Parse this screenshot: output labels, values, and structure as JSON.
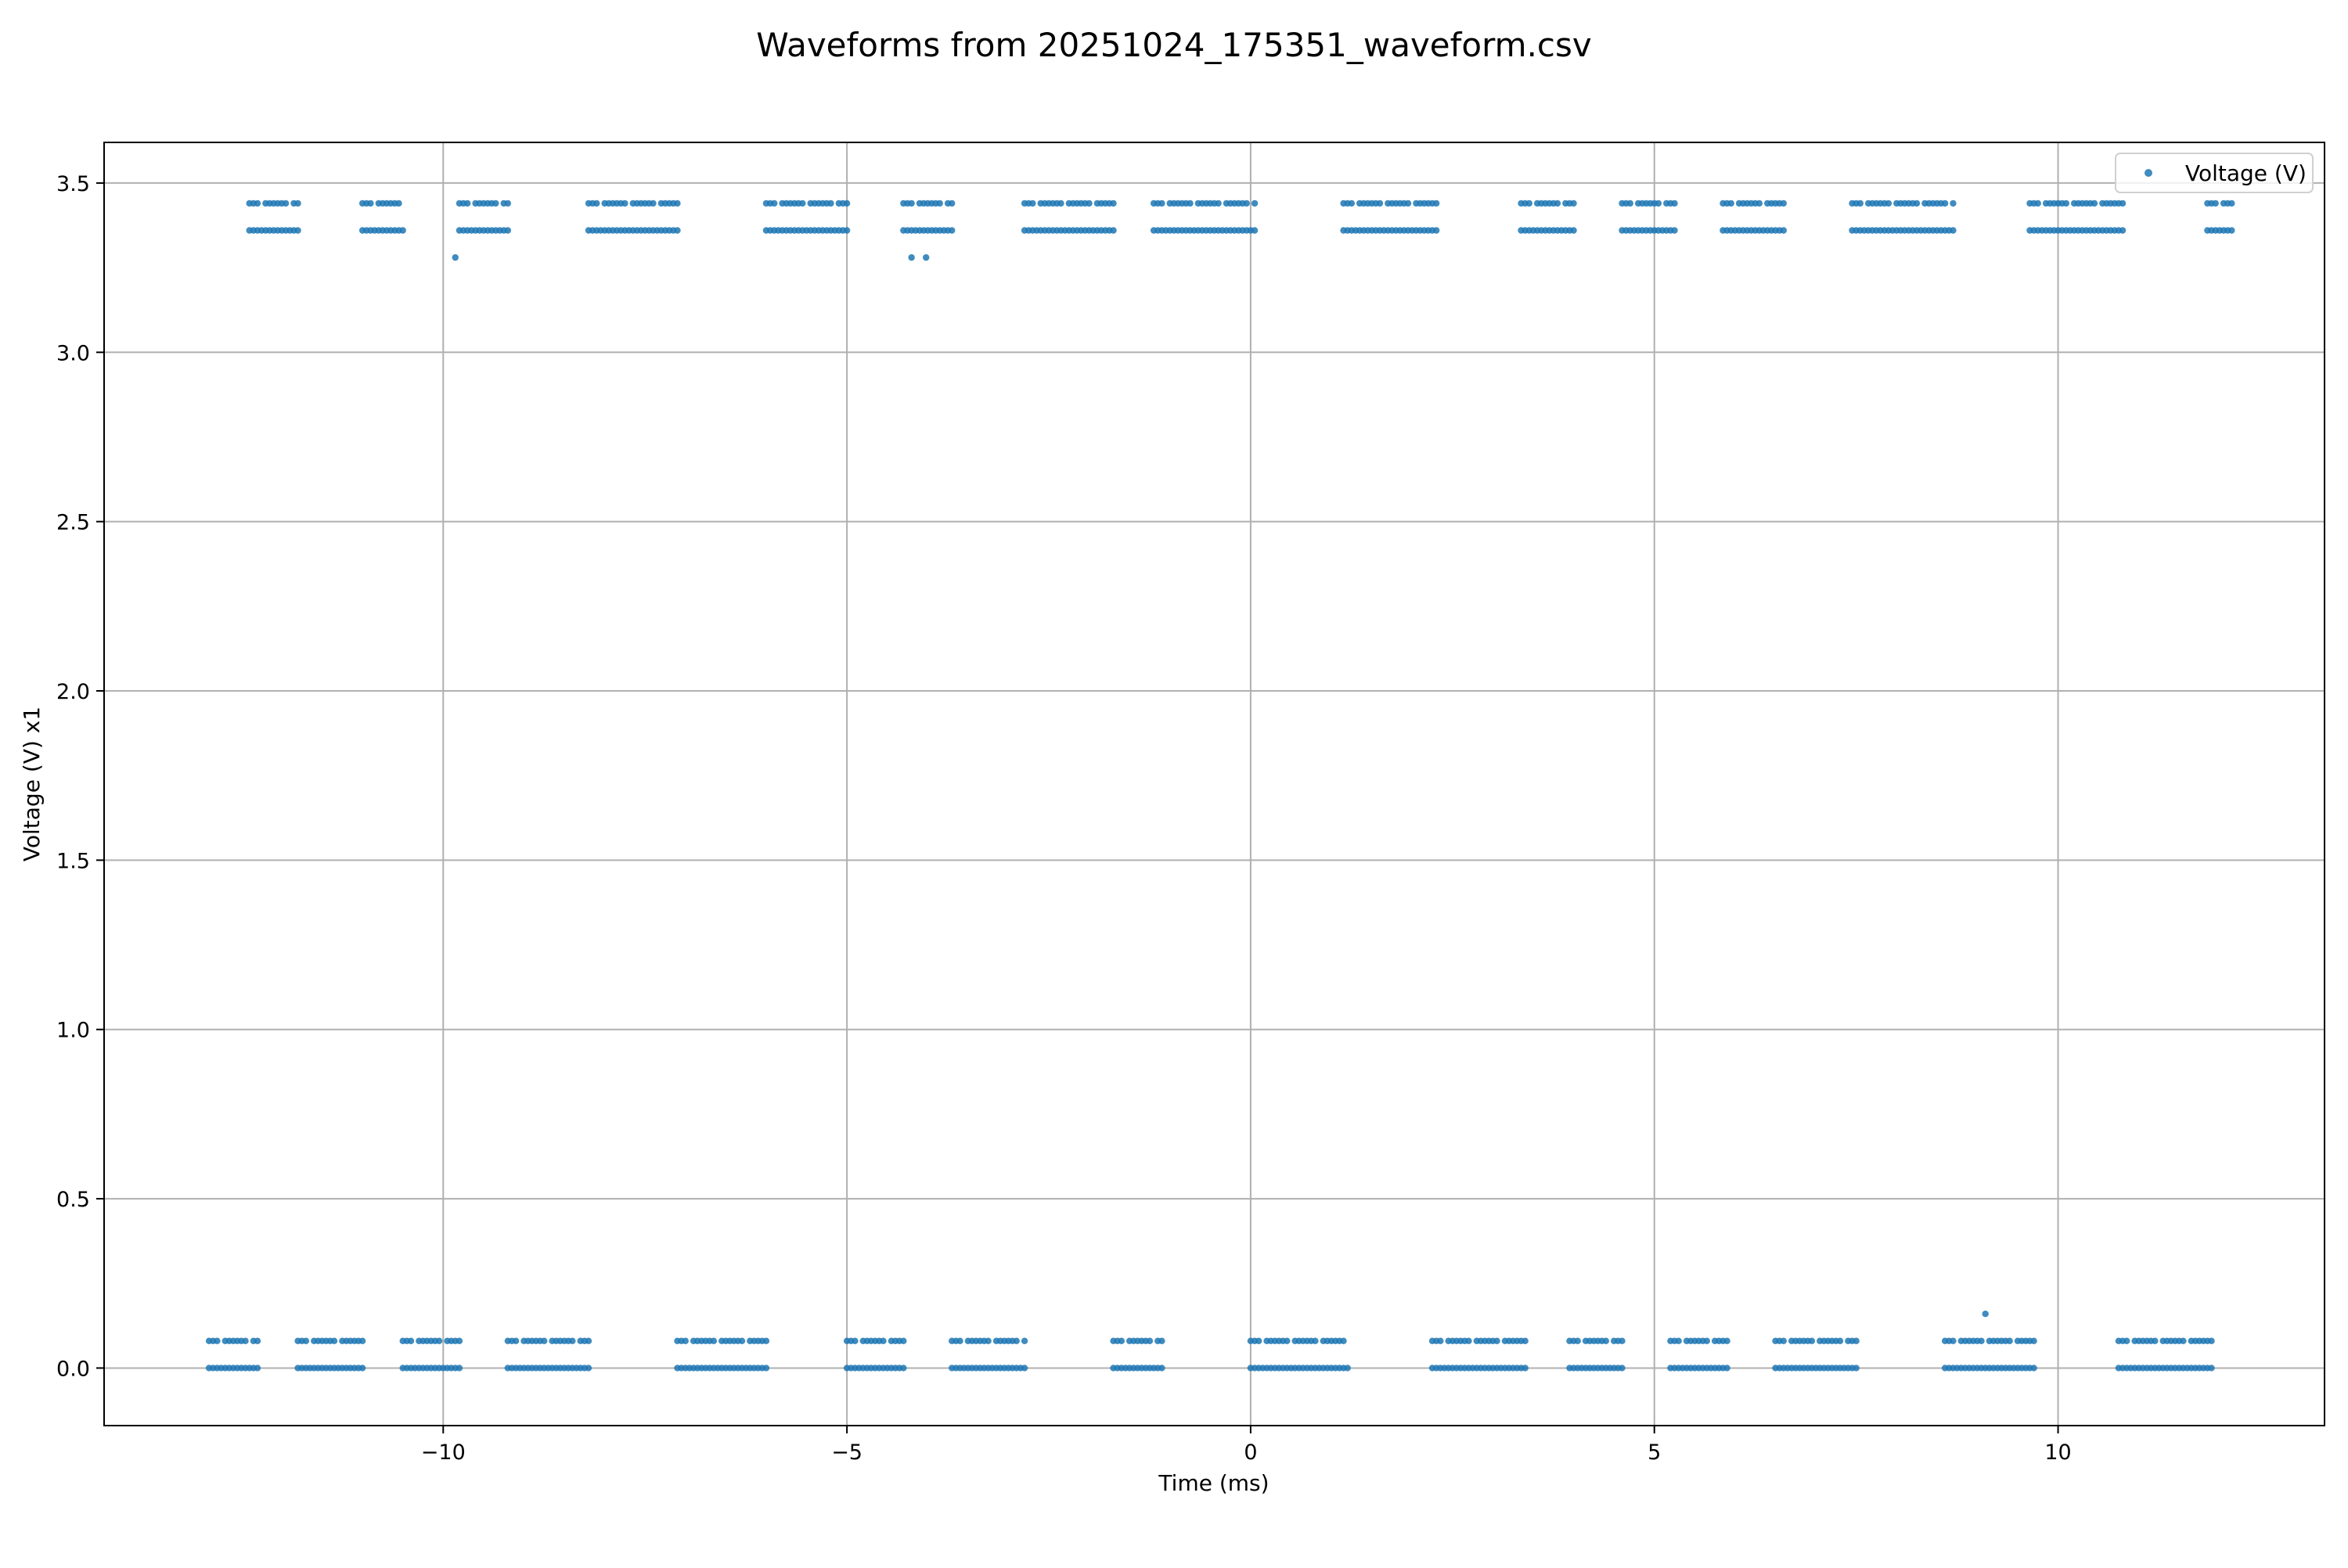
{
  "chart_data": {
    "type": "scatter",
    "title": "Waveforms from 20251024_175351_waveform.csv",
    "xlabel": "Time (ms)",
    "ylabel": "Voltage (V) x1",
    "xlim": [
      -14.2,
      13.3
    ],
    "ylim": [
      -0.17,
      3.62
    ],
    "xticks": [
      -10,
      -5,
      0,
      5,
      10
    ],
    "xtick_labels": [
      "−10",
      "−5",
      "0",
      "5",
      "10"
    ],
    "yticks": [
      0.0,
      0.5,
      1.0,
      1.5,
      2.0,
      2.5,
      3.0,
      3.5
    ],
    "ytick_labels": [
      "0.0",
      "0.5",
      "1.0",
      "1.5",
      "2.0",
      "2.5",
      "3.0",
      "3.5"
    ],
    "grid": true,
    "legend_position": "upper-right",
    "color": "#1f77b4",
    "series": [
      {
        "name": "Voltage (V)",
        "low_segments": [
          [
            -12.9,
            -12.3
          ],
          [
            -11.8,
            -11.0
          ],
          [
            -10.5,
            -9.8
          ],
          [
            -9.2,
            -8.2
          ],
          [
            -7.1,
            -6.0
          ],
          [
            -5.0,
            -4.3
          ],
          [
            -3.7,
            -2.8
          ],
          [
            -1.7,
            -1.1
          ],
          [
            0.0,
            1.2
          ],
          [
            2.25,
            3.4
          ],
          [
            3.95,
            4.6
          ],
          [
            5.2,
            5.9
          ],
          [
            6.5,
            7.5
          ],
          [
            8.6,
            9.7
          ],
          [
            10.75,
            11.9
          ]
        ],
        "high_segments": [
          [
            -12.4,
            -11.8
          ],
          [
            -11.0,
            -10.5
          ],
          [
            -9.8,
            -9.2
          ],
          [
            -8.2,
            -7.1
          ],
          [
            -6.0,
            -5.0
          ],
          [
            -4.3,
            -3.7
          ],
          [
            -2.8,
            -1.7
          ],
          [
            -1.2,
            0.05
          ],
          [
            1.15,
            2.3
          ],
          [
            3.35,
            4.0
          ],
          [
            4.6,
            5.25
          ],
          [
            5.85,
            6.6
          ],
          [
            7.45,
            8.7
          ],
          [
            9.65,
            10.8
          ],
          [
            11.85,
            12.15
          ]
        ],
        "low_levels": [
          0.0,
          0.08
        ],
        "high_levels": [
          3.36,
          3.44
        ],
        "sample_step_ms": 0.05,
        "outliers": [
          {
            "x": -9.85,
            "y": 3.28
          },
          {
            "x": -4.2,
            "y": 3.28
          },
          {
            "x": -4.02,
            "y": 3.28
          },
          {
            "x": 9.1,
            "y": 0.16
          }
        ]
      }
    ]
  }
}
